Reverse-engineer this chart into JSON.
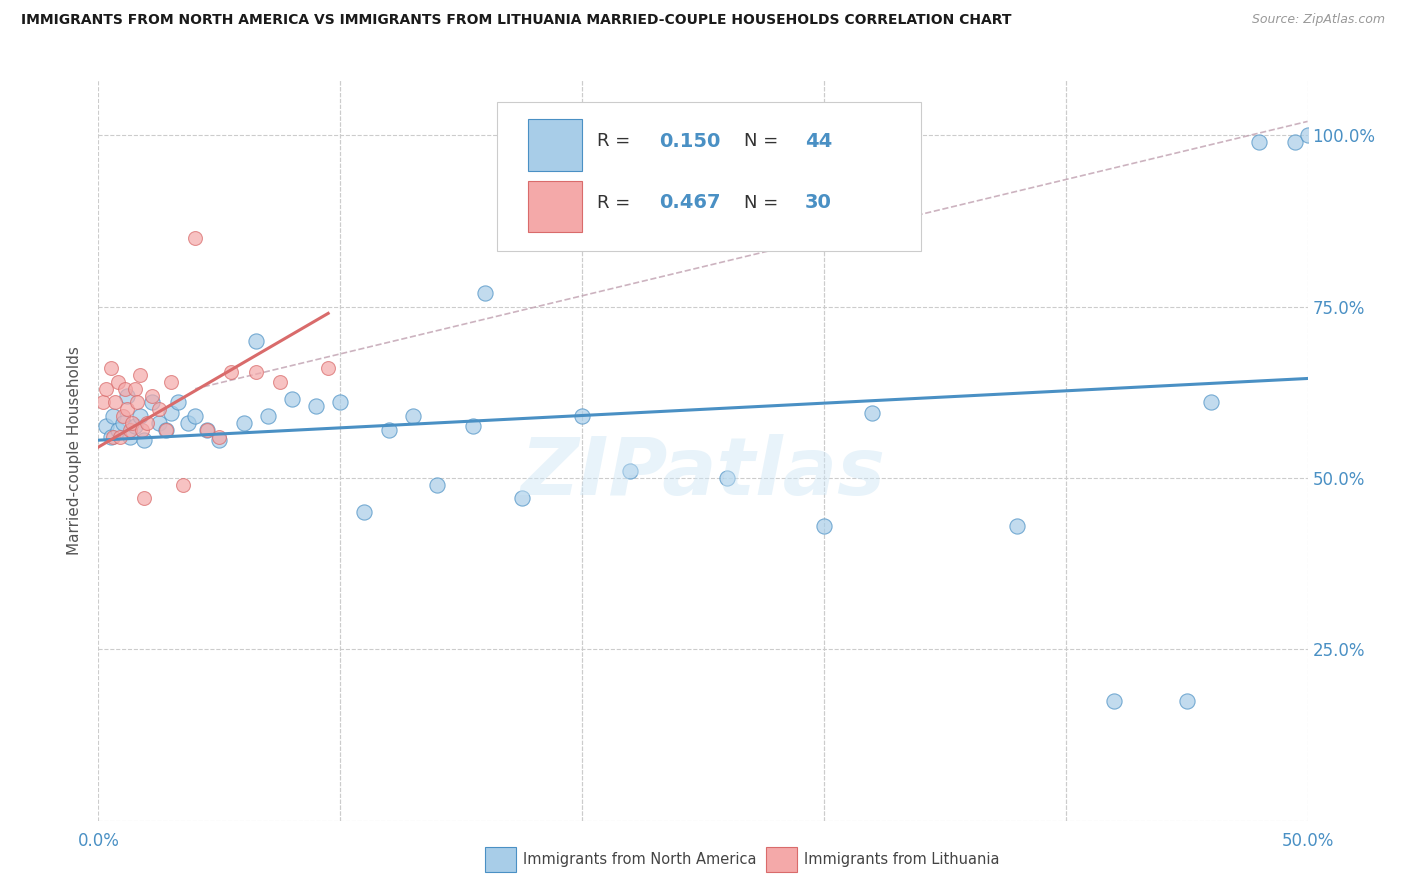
{
  "title": "IMMIGRANTS FROM NORTH AMERICA VS IMMIGRANTS FROM LITHUANIA MARRIED-COUPLE HOUSEHOLDS CORRELATION CHART",
  "source": "Source: ZipAtlas.com",
  "ylabel": "Married-couple Households",
  "xlim": [
    0.0,
    0.5
  ],
  "ylim": [
    0.0,
    1.08
  ],
  "ytick_labels_right": [
    "25.0%",
    "50.0%",
    "75.0%",
    "100.0%"
  ],
  "ytick_positions_right": [
    0.25,
    0.5,
    0.75,
    1.0
  ],
  "legend_label1": "Immigrants from North America",
  "legend_label2": "Immigrants from Lithuania",
  "R1": "0.150",
  "N1": "44",
  "R2": "0.467",
  "N2": "30",
  "color_blue": "#a8cde8",
  "color_pink": "#f4a9a9",
  "color_blue_dark": "#4a90c4",
  "color_pink_dark": "#d96b6b",
  "color_dashed": "#c0a0b0",
  "watermark": "ZIPatlas",
  "blue_x": [
    0.003,
    0.005,
    0.006,
    0.008,
    0.01,
    0.012,
    0.013,
    0.015,
    0.017,
    0.019,
    0.022,
    0.025,
    0.028,
    0.03,
    0.033,
    0.037,
    0.04,
    0.045,
    0.05,
    0.06,
    0.065,
    0.07,
    0.08,
    0.09,
    0.1,
    0.11,
    0.12,
    0.13,
    0.14,
    0.155,
    0.16,
    0.175,
    0.2,
    0.22,
    0.26,
    0.3,
    0.32,
    0.38,
    0.42,
    0.45,
    0.46,
    0.48,
    0.495,
    0.5
  ],
  "blue_y": [
    0.575,
    0.56,
    0.59,
    0.57,
    0.58,
    0.62,
    0.56,
    0.575,
    0.59,
    0.555,
    0.61,
    0.58,
    0.57,
    0.595,
    0.61,
    0.58,
    0.59,
    0.57,
    0.555,
    0.58,
    0.7,
    0.59,
    0.615,
    0.605,
    0.61,
    0.45,
    0.57,
    0.59,
    0.49,
    0.575,
    0.77,
    0.47,
    0.59,
    0.51,
    0.5,
    0.43,
    0.595,
    0.43,
    0.175,
    0.175,
    0.61,
    0.99,
    0.99,
    1.0
  ],
  "pink_x": [
    0.002,
    0.003,
    0.005,
    0.006,
    0.007,
    0.008,
    0.009,
    0.01,
    0.011,
    0.012,
    0.013,
    0.014,
    0.015,
    0.016,
    0.017,
    0.018,
    0.019,
    0.02,
    0.022,
    0.025,
    0.028,
    0.03,
    0.035,
    0.04,
    0.045,
    0.05,
    0.055,
    0.065,
    0.075,
    0.095
  ],
  "pink_y": [
    0.61,
    0.63,
    0.66,
    0.56,
    0.61,
    0.64,
    0.56,
    0.59,
    0.63,
    0.6,
    0.57,
    0.58,
    0.63,
    0.61,
    0.65,
    0.57,
    0.47,
    0.58,
    0.62,
    0.6,
    0.57,
    0.64,
    0.49,
    0.85,
    0.57,
    0.56,
    0.655,
    0.655,
    0.64,
    0.66
  ],
  "blue_size": 120,
  "pink_size": 100,
  "grid_yticks": [
    0.0,
    0.25,
    0.5,
    0.75,
    1.0
  ],
  "grid_xticks": [
    0.0,
    0.1,
    0.2,
    0.3,
    0.4,
    0.5
  ]
}
